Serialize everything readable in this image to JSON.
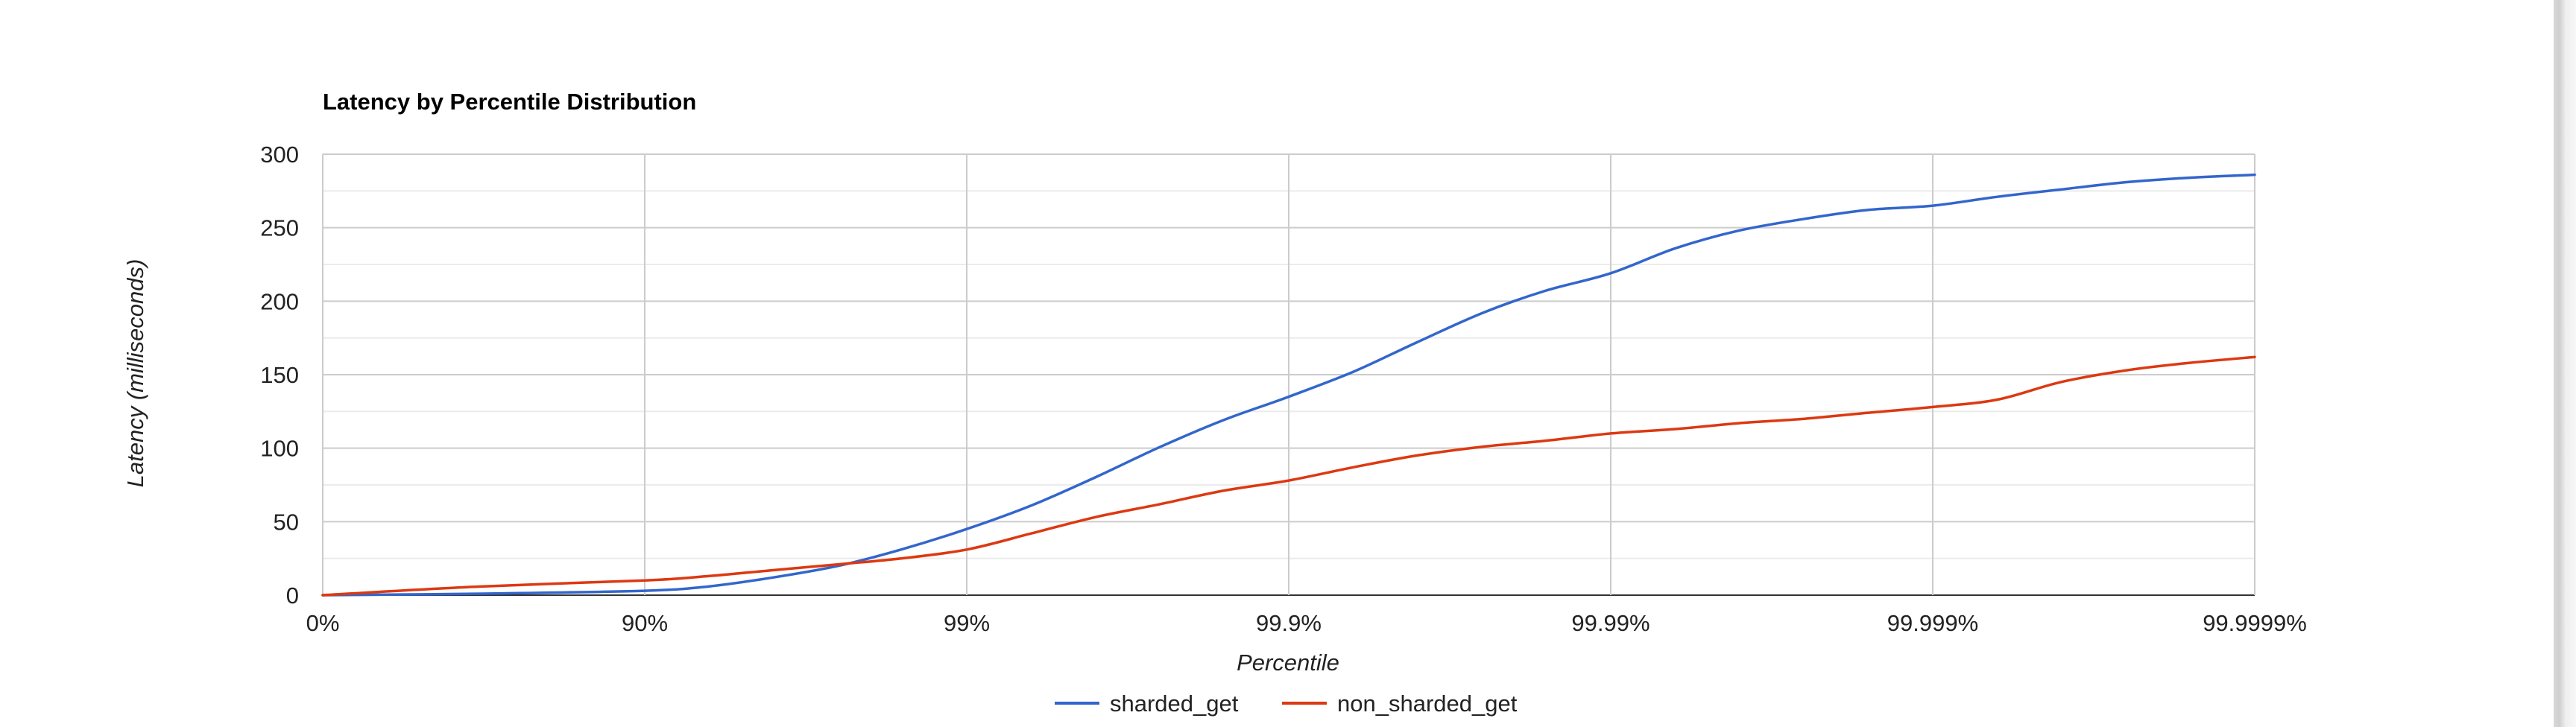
{
  "chart_data": {
    "type": "line",
    "title": "Latency by Percentile Distribution",
    "xlabel": "Percentile",
    "ylabel": "Latency (milliseconds)",
    "x_ticks": [
      "0%",
      "90%",
      "99%",
      "99.9%",
      "99.99%",
      "99.999%",
      "99.9999%"
    ],
    "y_ticks": [
      0,
      50,
      100,
      150,
      200,
      250,
      300
    ],
    "ylim": [
      0,
      300
    ],
    "x_scale": "log-nines",
    "grid": true,
    "legend_position": "bottom",
    "series": [
      {
        "name": "sharded_get",
        "color": "#3366cc",
        "points": [
          [
            "0%",
            0
          ],
          [
            "68.4%",
            1
          ],
          [
            "90%",
            3
          ],
          [
            "93.7%",
            6
          ],
          [
            "96.0%",
            12
          ],
          [
            "97.5%",
            20
          ],
          [
            "98.4%",
            31
          ],
          [
            "99%",
            45
          ],
          [
            "99.37%",
            61
          ],
          [
            "99.6%",
            80
          ],
          [
            "99.75%",
            101
          ],
          [
            "99.84%",
            119
          ],
          [
            "99.9%",
            135
          ],
          [
            "99.937%",
            152
          ],
          [
            "99.96%",
            172
          ],
          [
            "99.975%",
            192
          ],
          [
            "99.984%",
            207
          ],
          [
            "99.99%",
            219
          ],
          [
            "99.9937%",
            236
          ],
          [
            "99.996%",
            248
          ],
          [
            "99.9975%",
            256
          ],
          [
            "99.9984%",
            262
          ],
          [
            "99.999%",
            265
          ],
          [
            "99.99937%",
            271
          ],
          [
            "99.9996%",
            276
          ],
          [
            "99.99975%",
            281
          ],
          [
            "99.99984%",
            284
          ],
          [
            "99.9999%",
            286
          ]
        ]
      },
      {
        "name": "non_sharded_get",
        "color": "#dc3912",
        "points": [
          [
            "0%",
            0
          ],
          [
            "68.4%",
            6
          ],
          [
            "90%",
            10
          ],
          [
            "93.7%",
            13
          ],
          [
            "96.0%",
            17
          ],
          [
            "97.5%",
            21
          ],
          [
            "98.4%",
            25
          ],
          [
            "99%",
            31
          ],
          [
            "99.37%",
            42
          ],
          [
            "99.6%",
            53
          ],
          [
            "99.75%",
            62
          ],
          [
            "99.84%",
            71
          ],
          [
            "99.9%",
            78
          ],
          [
            "99.937%",
            87
          ],
          [
            "99.96%",
            95
          ],
          [
            "99.975%",
            101
          ],
          [
            "99.984%",
            105
          ],
          [
            "99.99%",
            110
          ],
          [
            "99.9937%",
            113
          ],
          [
            "99.996%",
            117
          ],
          [
            "99.9975%",
            120
          ],
          [
            "99.9984%",
            124
          ],
          [
            "99.999%",
            128
          ],
          [
            "99.99937%",
            133
          ],
          [
            "99.9996%",
            145
          ],
          [
            "99.99975%",
            153
          ],
          [
            "99.99984%",
            158
          ],
          [
            "99.9999%",
            162
          ]
        ]
      }
    ]
  }
}
